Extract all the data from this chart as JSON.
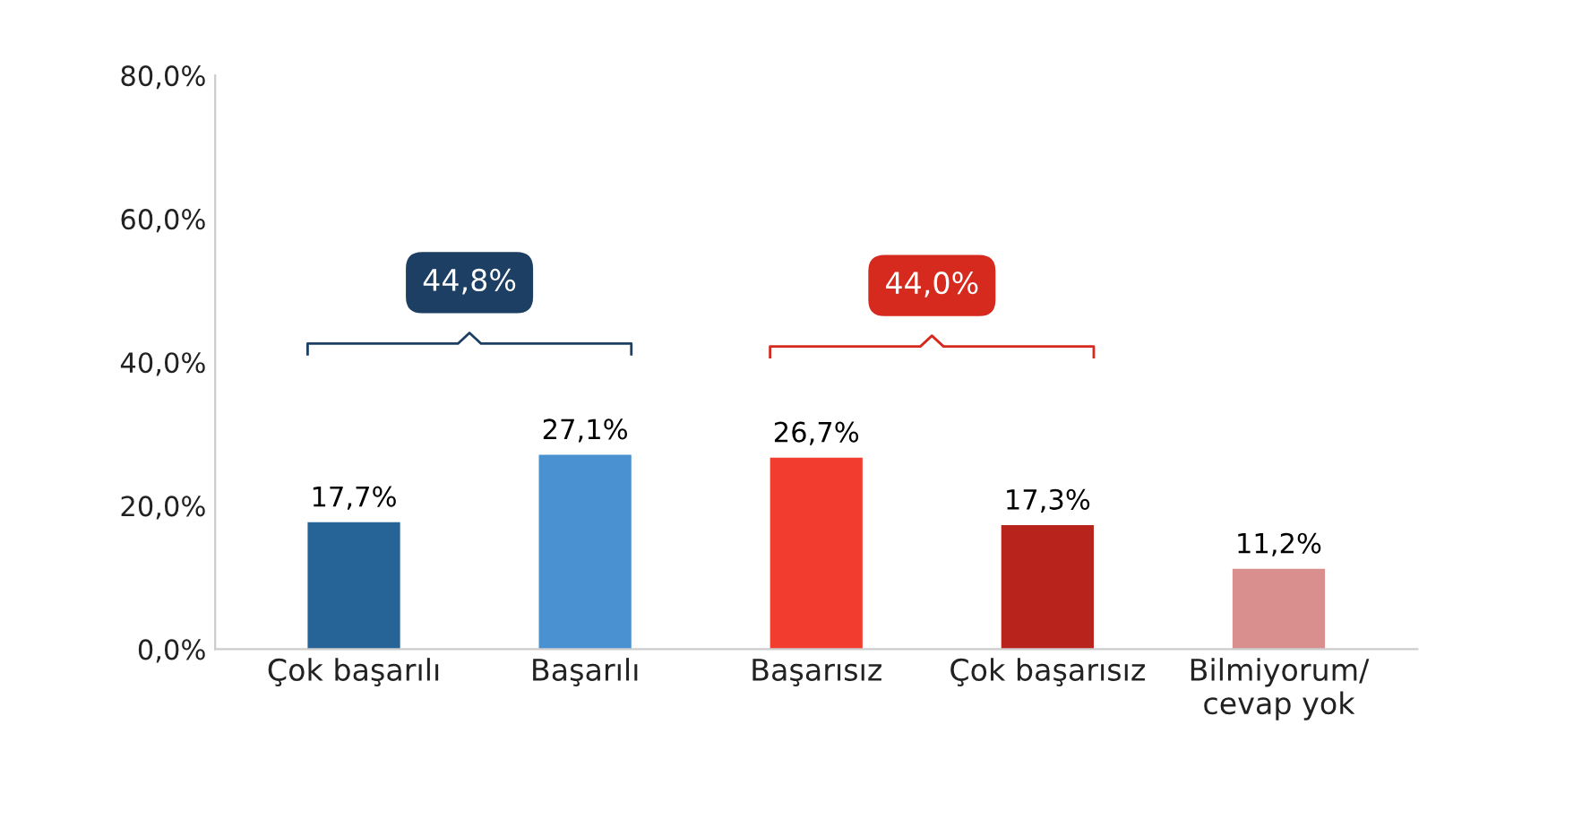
{
  "chart_data": {
    "type": "bar",
    "categories": [
      "Çok başarılı",
      "Başarılı",
      "Başarısız",
      "Çok başarısız",
      "Bilmiyorum/\ncevap yok"
    ],
    "values": [
      17.7,
      27.1,
      26.7,
      17.3,
      11.2
    ],
    "colors": [
      "#266396",
      "#4a91d1",
      "#f33c30",
      "#b8241c",
      "#da8f8f"
    ],
    "value_labels": [
      "17,7%",
      "27,1%",
      "26,7%",
      "17,3%",
      "11,2%"
    ],
    "ylim": [
      0,
      80
    ],
    "yticks": [
      {
        "value": 0,
        "label": "0,0%"
      },
      {
        "value": 20,
        "label": "20,0%"
      },
      {
        "value": 40,
        "label": "40,0%"
      },
      {
        "value": 60,
        "label": "60,0%"
      },
      {
        "value": 80,
        "label": "80,0%"
      }
    ],
    "annotations": [
      "44,8%",
      "44,0%"
    ],
    "grid": false,
    "legend": false
  }
}
